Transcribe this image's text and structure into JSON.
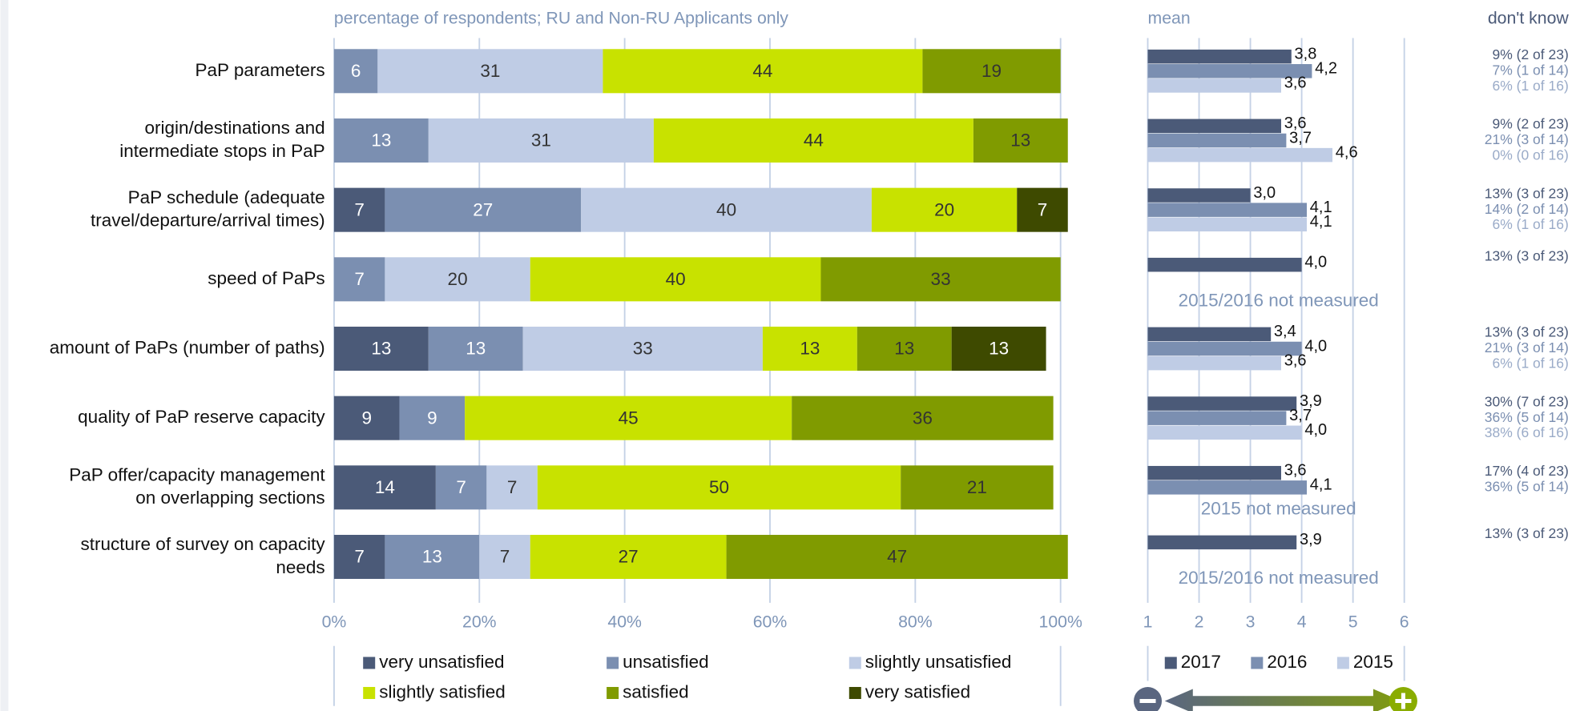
{
  "chart_data": [
    {
      "type": "stacked-bar-horizontal",
      "subtitle": "percentage of respondents; RU and Non-RU Applicants only",
      "categories": [
        "PaP parameters",
        "origin/destinations and\nintermediate stops in PaP",
        "PaP schedule (adequate\ntravel/departure/arrival times)",
        "speed of PaPs",
        "amount of PaPs (number of paths)",
        "quality of PaP reserve capacity",
        "PaP offer/capacity management\non overlapping sections",
        "structure of survey on capacity\nneeds"
      ],
      "series": [
        {
          "name": "very unsatisfied",
          "color": "#4b5a78",
          "values": [
            null,
            null,
            7,
            null,
            13,
            9,
            14,
            7
          ]
        },
        {
          "name": "unsatisfied",
          "color": "#7b8fb1",
          "values": [
            6,
            13,
            27,
            7,
            13,
            9,
            7,
            13
          ]
        },
        {
          "name": "slightly unsatisfied",
          "color": "#bfcce5",
          "values": [
            31,
            31,
            40,
            20,
            33,
            null,
            7,
            7
          ]
        },
        {
          "name": "slightly satisfied",
          "color": "#c8e200",
          "values": [
            44,
            44,
            20,
            40,
            13,
            45,
            50,
            27
          ]
        },
        {
          "name": "satisfied",
          "color": "#809b00",
          "values": [
            19,
            13,
            null,
            33,
            13,
            36,
            21,
            47
          ]
        },
        {
          "name": "very satisfied",
          "color": "#3e4a00",
          "values": [
            null,
            null,
            7,
            null,
            13,
            null,
            null,
            null
          ]
        }
      ],
      "xlim": [
        0,
        100
      ],
      "xticks": [
        {
          "value": 0,
          "label": "0%"
        },
        {
          "value": 20,
          "label": "20%"
        },
        {
          "value": 40,
          "label": "40%"
        },
        {
          "value": 60,
          "label": "60%"
        },
        {
          "value": 80,
          "label": "80%"
        },
        {
          "value": 100,
          "label": "100%"
        }
      ],
      "grid": true
    },
    {
      "type": "grouped-bar-horizontal",
      "subtitle": "mean",
      "series": [
        {
          "name": "2017",
          "color": "#4b5a78",
          "values": [
            3.8,
            3.6,
            3.0,
            4.0,
            3.4,
            3.9,
            3.6,
            3.9
          ],
          "value_labels": [
            "3,8",
            "3,6",
            "3,0",
            "4,0",
            "3,4",
            "3,9",
            "3,6",
            "3,9"
          ]
        },
        {
          "name": "2016",
          "color": "#7b8fb1",
          "values": [
            4.2,
            3.7,
            4.1,
            null,
            4.0,
            3.7,
            4.1,
            null
          ],
          "value_labels": [
            "4,2",
            "3,7",
            "4,1",
            null,
            "4,0",
            "3,7",
            "4,1",
            null
          ]
        },
        {
          "name": "2015",
          "color": "#bfcce5",
          "values": [
            3.6,
            4.6,
            4.1,
            null,
            3.6,
            4.0,
            null,
            null
          ],
          "value_labels": [
            "3,6",
            "4,6",
            "4,1",
            null,
            "3,6",
            "4,0",
            null,
            null
          ]
        }
      ],
      "notes": [
        null,
        null,
        null,
        "2015/2016 not measured",
        null,
        null,
        "2015 not measured",
        "2015/2016 not measured"
      ],
      "xlim": [
        1,
        6
      ],
      "xticks": [
        1,
        2,
        3,
        4,
        5,
        6
      ],
      "grid": true
    }
  ],
  "dont_know": {
    "title": "don't know",
    "rows": [
      [
        "9% (2 of 23)",
        "7% (1 of 14)",
        "6% (1 of 16)"
      ],
      [
        "9% (2 of 23)",
        "21% (3 of 14)",
        "0% (0 of 16)"
      ],
      [
        "13% (3 of 23)",
        "14% (2 of 14)",
        "6% (1 of 16)"
      ],
      [
        "13% (3 of 23)"
      ],
      [
        "13% (3 of 23)",
        "21% (3 of 14)",
        "6% (1 of 16)"
      ],
      [
        "30% (7 of 23)",
        "36% (5 of 14)",
        "38% (6 of 16)"
      ],
      [
        "17% (4 of 23)",
        "36% (5 of 14)"
      ],
      [
        "13% (3 of 23)"
      ]
    ]
  }
}
